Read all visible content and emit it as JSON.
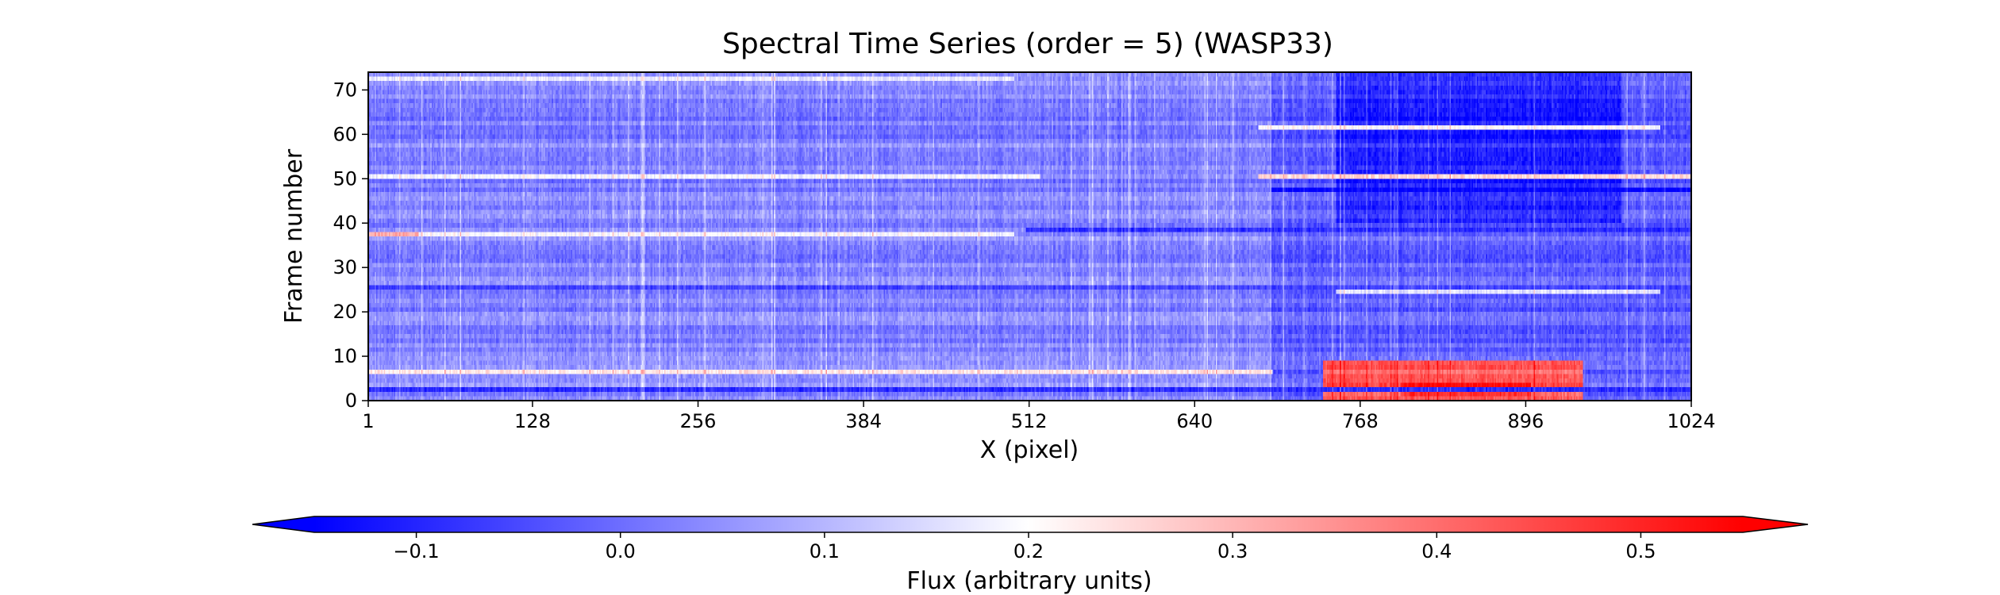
{
  "chart_data": {
    "type": "heatmap",
    "title": "Spectral Time Series (order = 5) (WASP33)",
    "xlabel": "X (pixel)",
    "ylabel": "Frame number",
    "xlim": [
      1,
      1024
    ],
    "ylim": [
      0,
      74
    ],
    "xticks": [
      1,
      128,
      256,
      384,
      512,
      640,
      768,
      896,
      1024
    ],
    "yticks": [
      0,
      10,
      20,
      30,
      40,
      50,
      60,
      70
    ],
    "grid": false,
    "colormap": "bwr",
    "colors": {
      "low": "#0000ff",
      "mid": "#ffffff",
      "high": "#ff0000"
    },
    "colorbar": {
      "label": "Flux (arbitrary units)",
      "placement": "bottom",
      "extend": "both",
      "vmin": -0.15,
      "vmax": 0.55,
      "ticks": [
        -0.1,
        0.0,
        0.1,
        0.2,
        0.3,
        0.4,
        0.5
      ],
      "tick_labels": [
        "−0.1",
        "0.0",
        "0.1",
        "0.2",
        "0.3",
        "0.4",
        "0.5"
      ]
    },
    "image": {
      "frames": 74,
      "baseline_flux": 0.03,
      "regions": [
        {
          "x": [
            700,
            1024
          ],
          "y": [
            0,
            74
          ],
          "flux": -0.02
        },
        {
          "x": [
            750,
            970
          ],
          "y": [
            40,
            73
          ],
          "flux": -0.1
        },
        {
          "x": [
            740,
            940
          ],
          "y": [
            0,
            8
          ],
          "flux": 0.42
        },
        {
          "x": [
            800,
            900
          ],
          "y": [
            1,
            3
          ],
          "flux": 0.5
        }
      ],
      "bright_rows": [
        {
          "frame": 6,
          "x": [
            1,
            700
          ],
          "flux": 0.26
        },
        {
          "frame": 37,
          "x": [
            1,
            40
          ],
          "flux": 0.32
        },
        {
          "frame": 37,
          "x": [
            40,
            500
          ],
          "flux": 0.2
        },
        {
          "frame": 50,
          "x": [
            1,
            520
          ],
          "flux": 0.17
        },
        {
          "frame": 50,
          "x": [
            690,
            1024
          ],
          "flux": 0.24
        },
        {
          "frame": 61,
          "x": [
            690,
            1000
          ],
          "flux": 0.23
        },
        {
          "frame": 24,
          "x": [
            750,
            1000
          ],
          "flux": 0.18
        },
        {
          "frame": 72,
          "x": [
            1,
            500
          ],
          "flux": 0.16
        }
      ],
      "dark_rows": [
        {
          "frame": 2,
          "x": [
            1,
            1024
          ],
          "flux": -0.1
        },
        {
          "frame": 38,
          "x": [
            510,
            1024
          ],
          "flux": -0.11
        },
        {
          "frame": 47,
          "x": [
            700,
            1024
          ],
          "flux": -0.12
        },
        {
          "frame": 25,
          "x": [
            1,
            1024
          ],
          "flux": -0.05
        }
      ]
    }
  }
}
